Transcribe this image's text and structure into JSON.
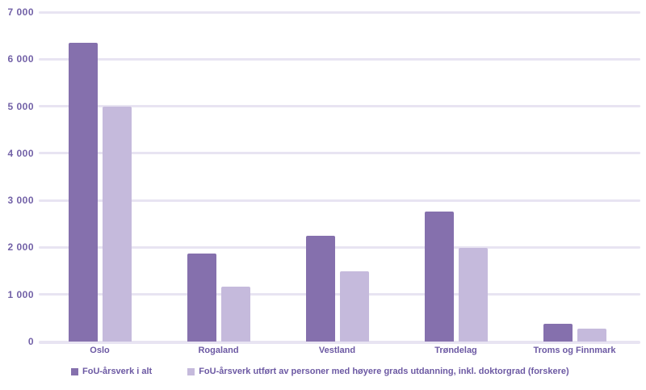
{
  "chart_data": {
    "type": "bar",
    "title": "",
    "xlabel": "",
    "ylabel": "",
    "categories": [
      "Oslo",
      "Rogaland",
      "Vestland",
      "Trøndelag",
      "Troms og Finnmark"
    ],
    "series": [
      {
        "name": "FoU-årsverk i alt",
        "color": "#8570AD",
        "values": [
          6350,
          1870,
          2250,
          2770,
          370
        ]
      },
      {
        "name": "FoU-årsverk utført av personer med høyere grads utdanning, inkl. doktorgrad (forskere)",
        "color": "#C5BADC",
        "values": [
          5000,
          1160,
          1500,
          1990,
          280
        ]
      }
    ],
    "ylim": [
      0,
      7000
    ],
    "y_ticks": [
      {
        "value": 7000,
        "label": "7 000"
      },
      {
        "value": 6000,
        "label": "6 000"
      },
      {
        "value": 5000,
        "label": "5 000"
      },
      {
        "value": 4000,
        "label": "4 000"
      },
      {
        "value": 3000,
        "label": "3 000"
      },
      {
        "value": 2000,
        "label": "2 000"
      },
      {
        "value": 1000,
        "label": "1 000"
      },
      {
        "value": 0,
        "label": "0"
      }
    ],
    "grid": true,
    "legend_position": "bottom"
  },
  "colors": {
    "background": "#FFFFFF",
    "gridline": "#E8E4F2",
    "axis_text": "#7261A7",
    "category_text": "#6C59A3",
    "legend_text": "#6C59A3"
  }
}
